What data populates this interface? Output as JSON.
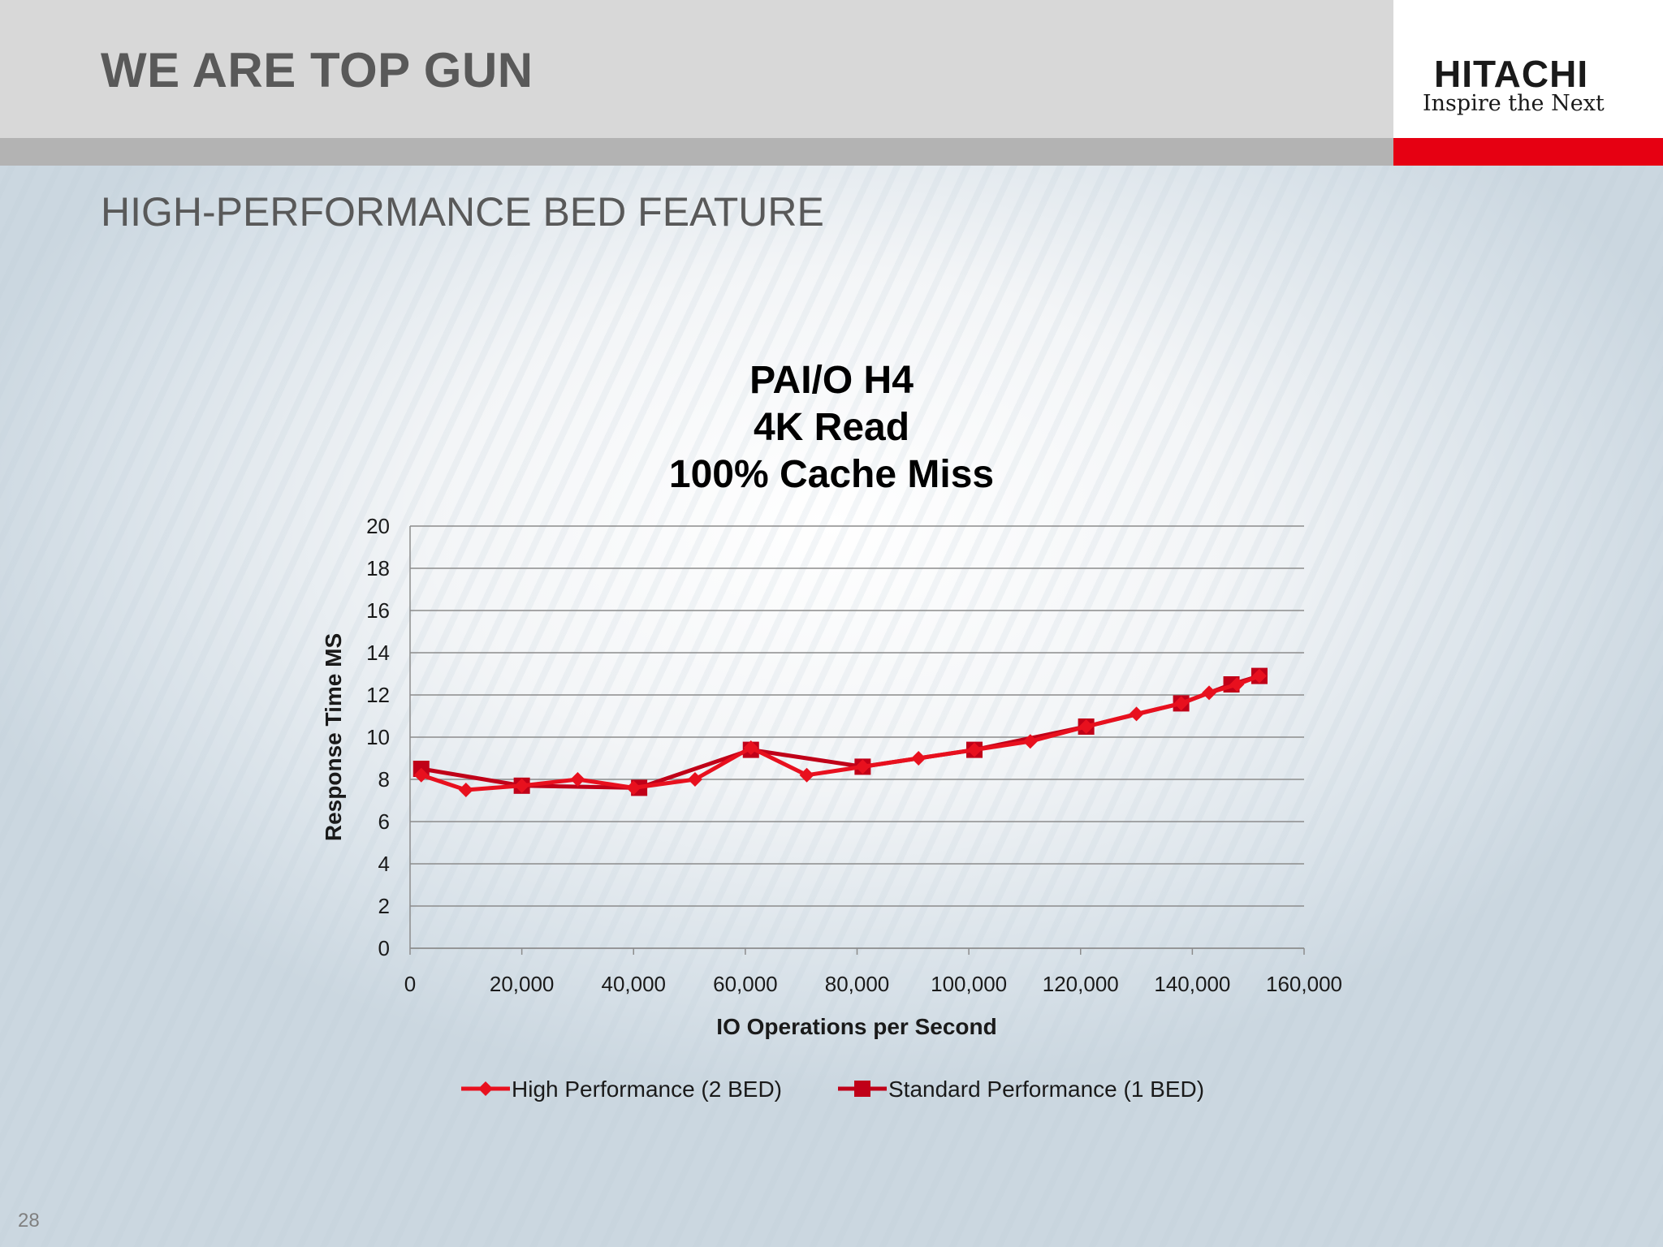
{
  "slide": {
    "title": "WE ARE TOP GUN",
    "subtitle": "HIGH-PERFORMANCE BED FEATURE",
    "page_number": "28",
    "logo_name": "HITACHI",
    "logo_tagline": "Inspire the Next"
  },
  "colors": {
    "header_bg": "#d8d8d8",
    "accent_red": "#e60012",
    "series_high": "#e8101e",
    "series_standard": "#c00018"
  },
  "chart_data": {
    "type": "line",
    "title_lines": [
      "PAI/O H4",
      "4K Read",
      "100% Cache Miss"
    ],
    "xlabel": "IO Operations per Second",
    "ylabel": "Response Time MS",
    "xlim": [
      0,
      160000
    ],
    "ylim": [
      0,
      20
    ],
    "x_ticks": [
      0,
      20000,
      40000,
      60000,
      80000,
      100000,
      120000,
      140000,
      160000
    ],
    "x_tick_labels": [
      "0",
      "20,000",
      "40,000",
      "60,000",
      "80,000",
      "100,000",
      "120,000",
      "140,000",
      "160,000"
    ],
    "y_ticks": [
      0,
      2,
      4,
      6,
      8,
      10,
      12,
      14,
      16,
      18,
      20
    ],
    "y_tick_labels": [
      "0",
      "2",
      "4",
      "6",
      "8",
      "10",
      "12",
      "14",
      "16",
      "18",
      "20"
    ],
    "grid": "horizontal",
    "legend_position": "bottom",
    "series": [
      {
        "name": "High Performance (2 BED)",
        "marker": "diamond",
        "x": [
          2000,
          10000,
          20000,
          30000,
          40000,
          51000,
          61000,
          71000,
          81000,
          91000,
          101000,
          111000,
          121000,
          130000,
          138000,
          143000,
          148000,
          152000
        ],
        "y": [
          8.2,
          7.5,
          7.7,
          8.0,
          7.6,
          8.0,
          9.5,
          8.2,
          8.6,
          9.0,
          9.4,
          9.8,
          10.5,
          11.1,
          11.6,
          12.1,
          12.5,
          12.9
        ]
      },
      {
        "name": "Standard Performance (1 BED)",
        "marker": "square",
        "x": [
          2000,
          20000,
          41000,
          61000,
          81000,
          101000,
          121000,
          138000,
          147000,
          152000
        ],
        "y": [
          8.5,
          7.7,
          7.6,
          9.4,
          8.6,
          9.4,
          10.5,
          11.6,
          12.5,
          12.9
        ]
      }
    ]
  }
}
